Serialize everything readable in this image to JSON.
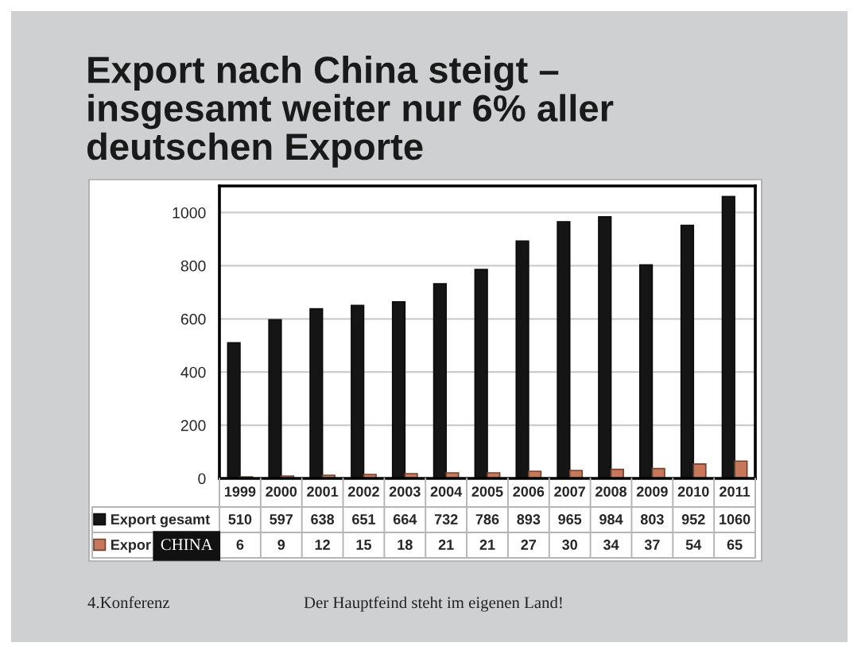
{
  "chart_data": {
    "type": "bar",
    "title": "Export nach China steigt – insgesamt weiter nur 6% aller deutschen Exporte",
    "categories": [
      "1999",
      "2000",
      "2001",
      "2002",
      "2003",
      "2004",
      "2005",
      "2006",
      "2007",
      "2008",
      "2009",
      "2010",
      "2011"
    ],
    "series": [
      {
        "name": "Export gesamt",
        "color": "#151515",
        "values": [
          510,
          597,
          638,
          651,
          664,
          732,
          786,
          893,
          965,
          984,
          803,
          952,
          1060
        ]
      },
      {
        "name": "Expor",
        "color": "#c8785a",
        "values": [
          6,
          9,
          12,
          15,
          18,
          21,
          21,
          27,
          30,
          34,
          37,
          54,
          65
        ]
      }
    ],
    "ylim": [
      0,
      1100
    ],
    "yticks": [
      0,
      200,
      400,
      600,
      800,
      1000
    ],
    "grid": "y",
    "legend": "bottom",
    "data_labels": true,
    "annotations": [
      "CHINA",
      "4.Konferenz",
      "Der Hauptfeind steht im eigenen Land!"
    ]
  }
}
